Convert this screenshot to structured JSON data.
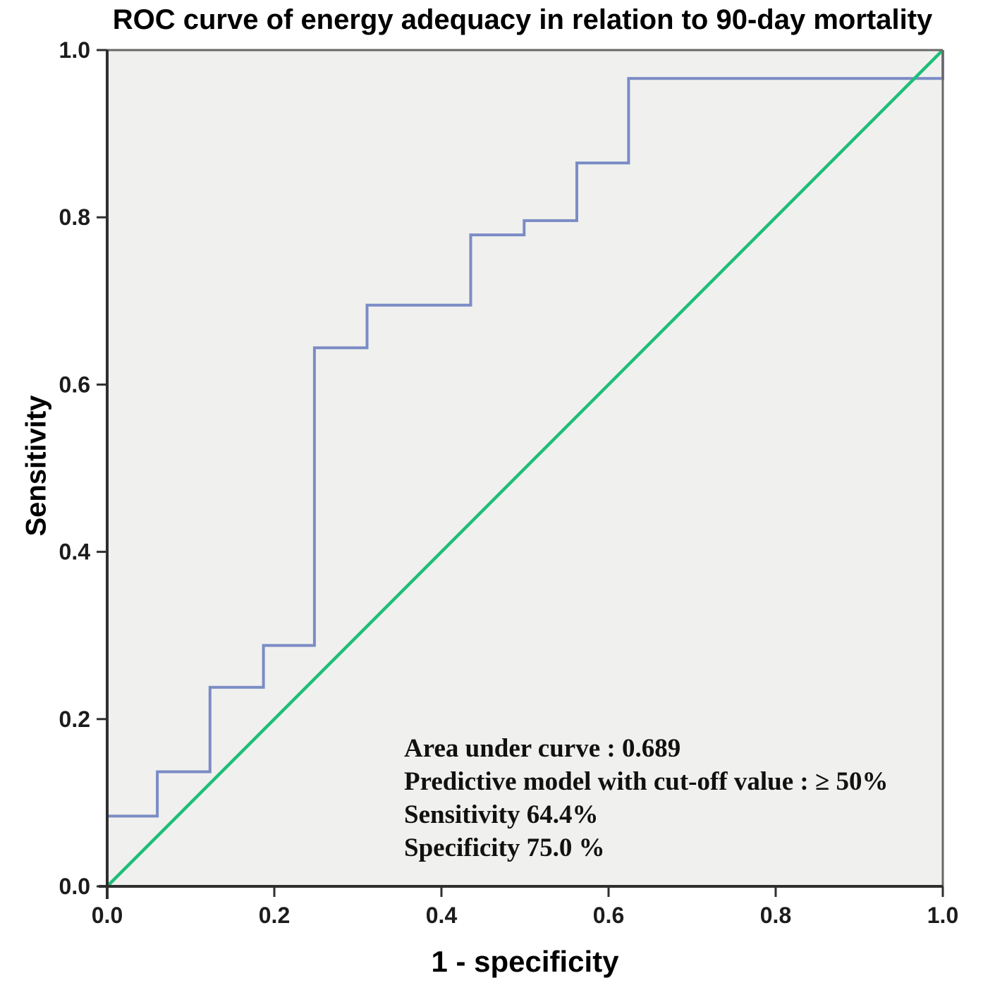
{
  "chart": {
    "title": "ROC curve of energy adequacy in relation to 90-day mortality",
    "ylabel": "Sensitivity",
    "xlabel": "1 - specificity"
  },
  "annotation": {
    "lines": [
      "Area under curve : 0.689",
      "Predictive model with cut-off value : ≥ 50%",
      "Sensitivity 64.4%",
      "Specificity 75.0 %"
    ]
  },
  "colors": {
    "plot_bg": "#f0f0ee",
    "frame": "#686868",
    "axis": "#2f2f2f",
    "roc_curve": "#7b8cc6",
    "reference_line": "#1ebe78",
    "text": "#000000"
  },
  "chart_data": {
    "type": "line",
    "title": "ROC curve of energy adequacy in relation to 90-day mortality",
    "xlabel": "1 - specificity",
    "ylabel": "Sensitivity",
    "xlim": [
      0,
      1
    ],
    "ylim": [
      0,
      1
    ],
    "grid": false,
    "legend": "none",
    "x_ticks": [
      "0.0",
      "0.2",
      "0.4",
      "0.6",
      "0.8",
      "1.0"
    ],
    "y_ticks": [
      "0.0",
      "0.2",
      "0.4",
      "0.6",
      "0.8",
      "1.0"
    ],
    "series": [
      {
        "name": "roc-step-curve",
        "color": "#7b8cc6",
        "width": 4,
        "points": [
          [
            0,
            0
          ],
          [
            0,
            0.084
          ],
          [
            0.06,
            0.084
          ],
          [
            0.06,
            0.137
          ],
          [
            0.123,
            0.137
          ],
          [
            0.123,
            0.238
          ],
          [
            0.187,
            0.238
          ],
          [
            0.187,
            0.288
          ],
          [
            0.248,
            0.288
          ],
          [
            0.248,
            0.644
          ],
          [
            0.311,
            0.644
          ],
          [
            0.311,
            0.695
          ],
          [
            0.435,
            0.695
          ],
          [
            0.435,
            0.779
          ],
          [
            0.499,
            0.779
          ],
          [
            0.499,
            0.796
          ],
          [
            0.562,
            0.796
          ],
          [
            0.562,
            0.865
          ],
          [
            0.624,
            0.865
          ],
          [
            0.624,
            0.966
          ],
          [
            1,
            0.966
          ],
          [
            1,
            1
          ]
        ]
      },
      {
        "name": "reference-diagonal",
        "color": "#1ebe78",
        "width": 4.5,
        "points": [
          [
            0,
            0
          ],
          [
            1,
            1
          ]
        ]
      }
    ],
    "stats": {
      "area_under_curve": 0.689,
      "cutoff_value": "≥ 50%",
      "sensitivity_pct": 64.4,
      "specificity_pct": 75.0
    }
  }
}
